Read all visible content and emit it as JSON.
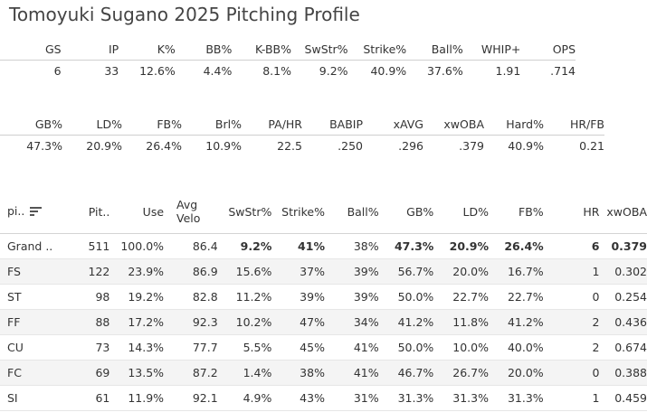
{
  "title": "Tomoyuki Sugano 2025 Pitching Profile",
  "summary1": {
    "headers": [
      "GS",
      "IP",
      "K%",
      "BB%",
      "K-BB%",
      "SwStr%",
      "Strike%",
      "Ball%",
      "WHIP+",
      "OPS"
    ],
    "values": [
      "6",
      "33",
      "12.6%",
      "4.4%",
      "8.1%",
      "9.2%",
      "40.9%",
      "37.6%",
      "1.91",
      ".714"
    ]
  },
  "summary2": {
    "headers": [
      "GB%",
      "LD%",
      "FB%",
      "Brl%",
      "PA/HR",
      "BABIP",
      "xAVG",
      "xwOBA",
      "Hard%",
      "HR/FB"
    ],
    "values": [
      "47.3%",
      "20.9%",
      "26.4%",
      "10.9%",
      "22.5",
      ".250",
      ".296",
      ".379",
      "40.9%",
      "0.21"
    ]
  },
  "pitch_table": {
    "headers": [
      "pi..",
      "Pit..",
      "Use",
      "Avg\nVelo",
      "SwStr%",
      "Strike%",
      "Ball%",
      "GB%",
      "LD%",
      "FB%",
      "HR",
      "xwOBA"
    ],
    "sort_icon": "sort-descending-icon",
    "rows": [
      [
        "Grand ..",
        "511",
        "100.0%",
        "86.4",
        "9.2%",
        "41%",
        "38%",
        "47.3%",
        "20.9%",
        "26.4%",
        "6",
        "0.379"
      ],
      [
        "FS",
        "122",
        "23.9%",
        "86.9",
        "15.6%",
        "37%",
        "39%",
        "56.7%",
        "20.0%",
        "16.7%",
        "1",
        "0.302"
      ],
      [
        "ST",
        "98",
        "19.2%",
        "82.8",
        "11.2%",
        "39%",
        "39%",
        "50.0%",
        "22.7%",
        "22.7%",
        "0",
        "0.254"
      ],
      [
        "FF",
        "88",
        "17.2%",
        "92.3",
        "10.2%",
        "47%",
        "34%",
        "41.2%",
        "11.8%",
        "41.2%",
        "2",
        "0.436"
      ],
      [
        "CU",
        "73",
        "14.3%",
        "77.7",
        "5.5%",
        "45%",
        "41%",
        "50.0%",
        "10.0%",
        "40.0%",
        "2",
        "0.674"
      ],
      [
        "FC",
        "69",
        "13.5%",
        "87.2",
        "1.4%",
        "38%",
        "41%",
        "46.7%",
        "26.7%",
        "20.0%",
        "0",
        "0.388"
      ],
      [
        "SI",
        "61",
        "11.9%",
        "92.1",
        "4.9%",
        "43%",
        "31%",
        "31.3%",
        "31.3%",
        "31.3%",
        "1",
        "0.459"
      ]
    ]
  }
}
